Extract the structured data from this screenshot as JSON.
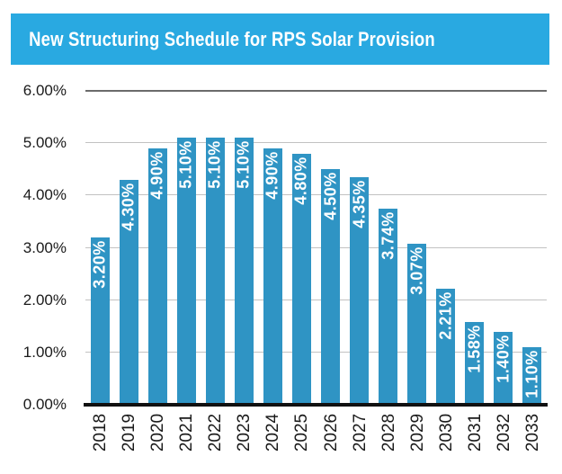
{
  "title": {
    "text": "New Structuring Schedule for RPS Solar Provision"
  },
  "colors": {
    "banner_bg": "#29A9E1",
    "bar": "#2F94C4",
    "gridline": "#C2C2C2",
    "gridline_top": "#6B6B6B",
    "axis_line": "#111111",
    "axis_text": "#1A1A1A",
    "value_label_text": "#FFFFFF"
  },
  "chart_data": {
    "type": "bar",
    "title": "New Structuring Schedule for RPS Solar Provision",
    "categories": [
      "2018",
      "2019",
      "2020",
      "2021",
      "2022",
      "2023",
      "2024",
      "2025",
      "2026",
      "2027",
      "2028",
      "2029",
      "2030",
      "2031",
      "2032",
      "2033"
    ],
    "values": [
      3.2,
      4.3,
      4.9,
      5.1,
      5.1,
      5.1,
      4.9,
      4.8,
      4.5,
      4.35,
      3.74,
      3.07,
      2.21,
      1.58,
      1.4,
      1.1
    ],
    "value_labels": [
      "3.20%",
      "4.30%",
      "4.90%",
      "5.10%",
      "5.10%",
      "5.10%",
      "4.90%",
      "4.80%",
      "4.50%",
      "4.35%",
      "3.74%",
      "3.07%",
      "2.21%",
      "1.58%",
      "1.40%",
      "1.10%"
    ],
    "xlabel": "",
    "ylabel": "",
    "ylim": [
      0,
      6
    ],
    "yticks": [
      0,
      1,
      2,
      3,
      4,
      5,
      6
    ],
    "ytick_labels": [
      "0.00%",
      "1.00%",
      "2.00%",
      "3.00%",
      "4.00%",
      "5.00%",
      "6.00%"
    ],
    "grid": "horizontal",
    "legend": "none",
    "bar_label_position": "inside-top-rotated-90",
    "x_label_rotation": -90
  }
}
